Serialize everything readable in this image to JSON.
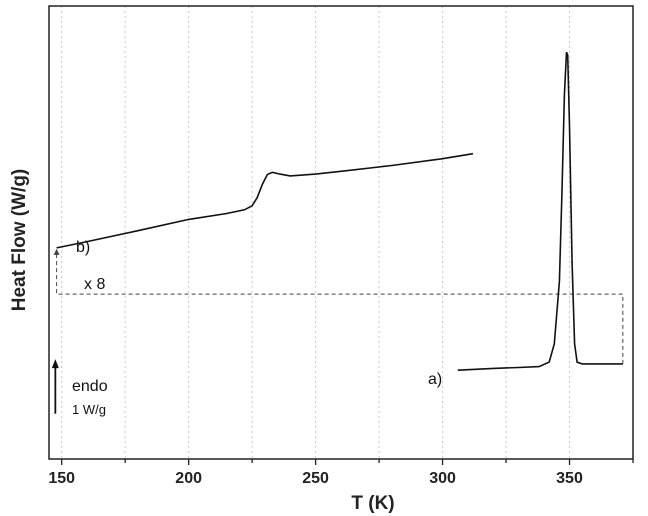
{
  "chart_data": {
    "type": "line",
    "xlabel": "T (K)",
    "ylabel": "Heat Flow (W/g)",
    "xlim": [
      145,
      375
    ],
    "xticks": [
      150,
      200,
      250,
      300,
      350
    ],
    "ylim": [
      0,
      100
    ],
    "grid": true,
    "series": [
      {
        "label": "b)",
        "points": [
          [
            148,
            46.6
          ],
          [
            160,
            48.0
          ],
          [
            180,
            50.4
          ],
          [
            200,
            52.9
          ],
          [
            215,
            54.2
          ],
          [
            222,
            55.0
          ],
          [
            225,
            55.9
          ],
          [
            227,
            57.7
          ],
          [
            229,
            60.6
          ],
          [
            231,
            62.8
          ],
          [
            233,
            63.3
          ],
          [
            236,
            62.9
          ],
          [
            240,
            62.5
          ],
          [
            250,
            62.9
          ],
          [
            260,
            63.5
          ],
          [
            280,
            64.8
          ],
          [
            300,
            66.3
          ],
          [
            312,
            67.4
          ]
        ]
      },
      {
        "label": "a)",
        "points": [
          [
            306,
            19.6
          ],
          [
            320,
            20.0
          ],
          [
            330,
            20.2
          ],
          [
            338,
            20.4
          ],
          [
            342,
            21.4
          ],
          [
            344,
            25.4
          ],
          [
            346,
            39.2
          ],
          [
            347,
            58.4
          ],
          [
            348,
            80.4
          ],
          [
            348.8,
            89.8
          ],
          [
            349.3,
            89.2
          ],
          [
            350,
            73.5
          ],
          [
            351,
            43.1
          ],
          [
            352,
            25.4
          ],
          [
            353,
            21.4
          ],
          [
            355,
            21.0
          ],
          [
            365,
            21.0
          ],
          [
            371,
            21.0
          ]
        ]
      }
    ],
    "annotations": {
      "series_b_label": "b)",
      "scale_factor": "x 8",
      "series_a_label": "a)",
      "endo_label": "endo",
      "scale_bar_label": "1 W/g"
    },
    "connector": {
      "b_start": [
        148,
        46.6
      ],
      "a_end": [
        371,
        21.0
      ],
      "level_y": 36.4
    },
    "scale_bar": {
      "x": 147.5,
      "y_bottom": 10.0,
      "y_top": 21.6
    }
  }
}
